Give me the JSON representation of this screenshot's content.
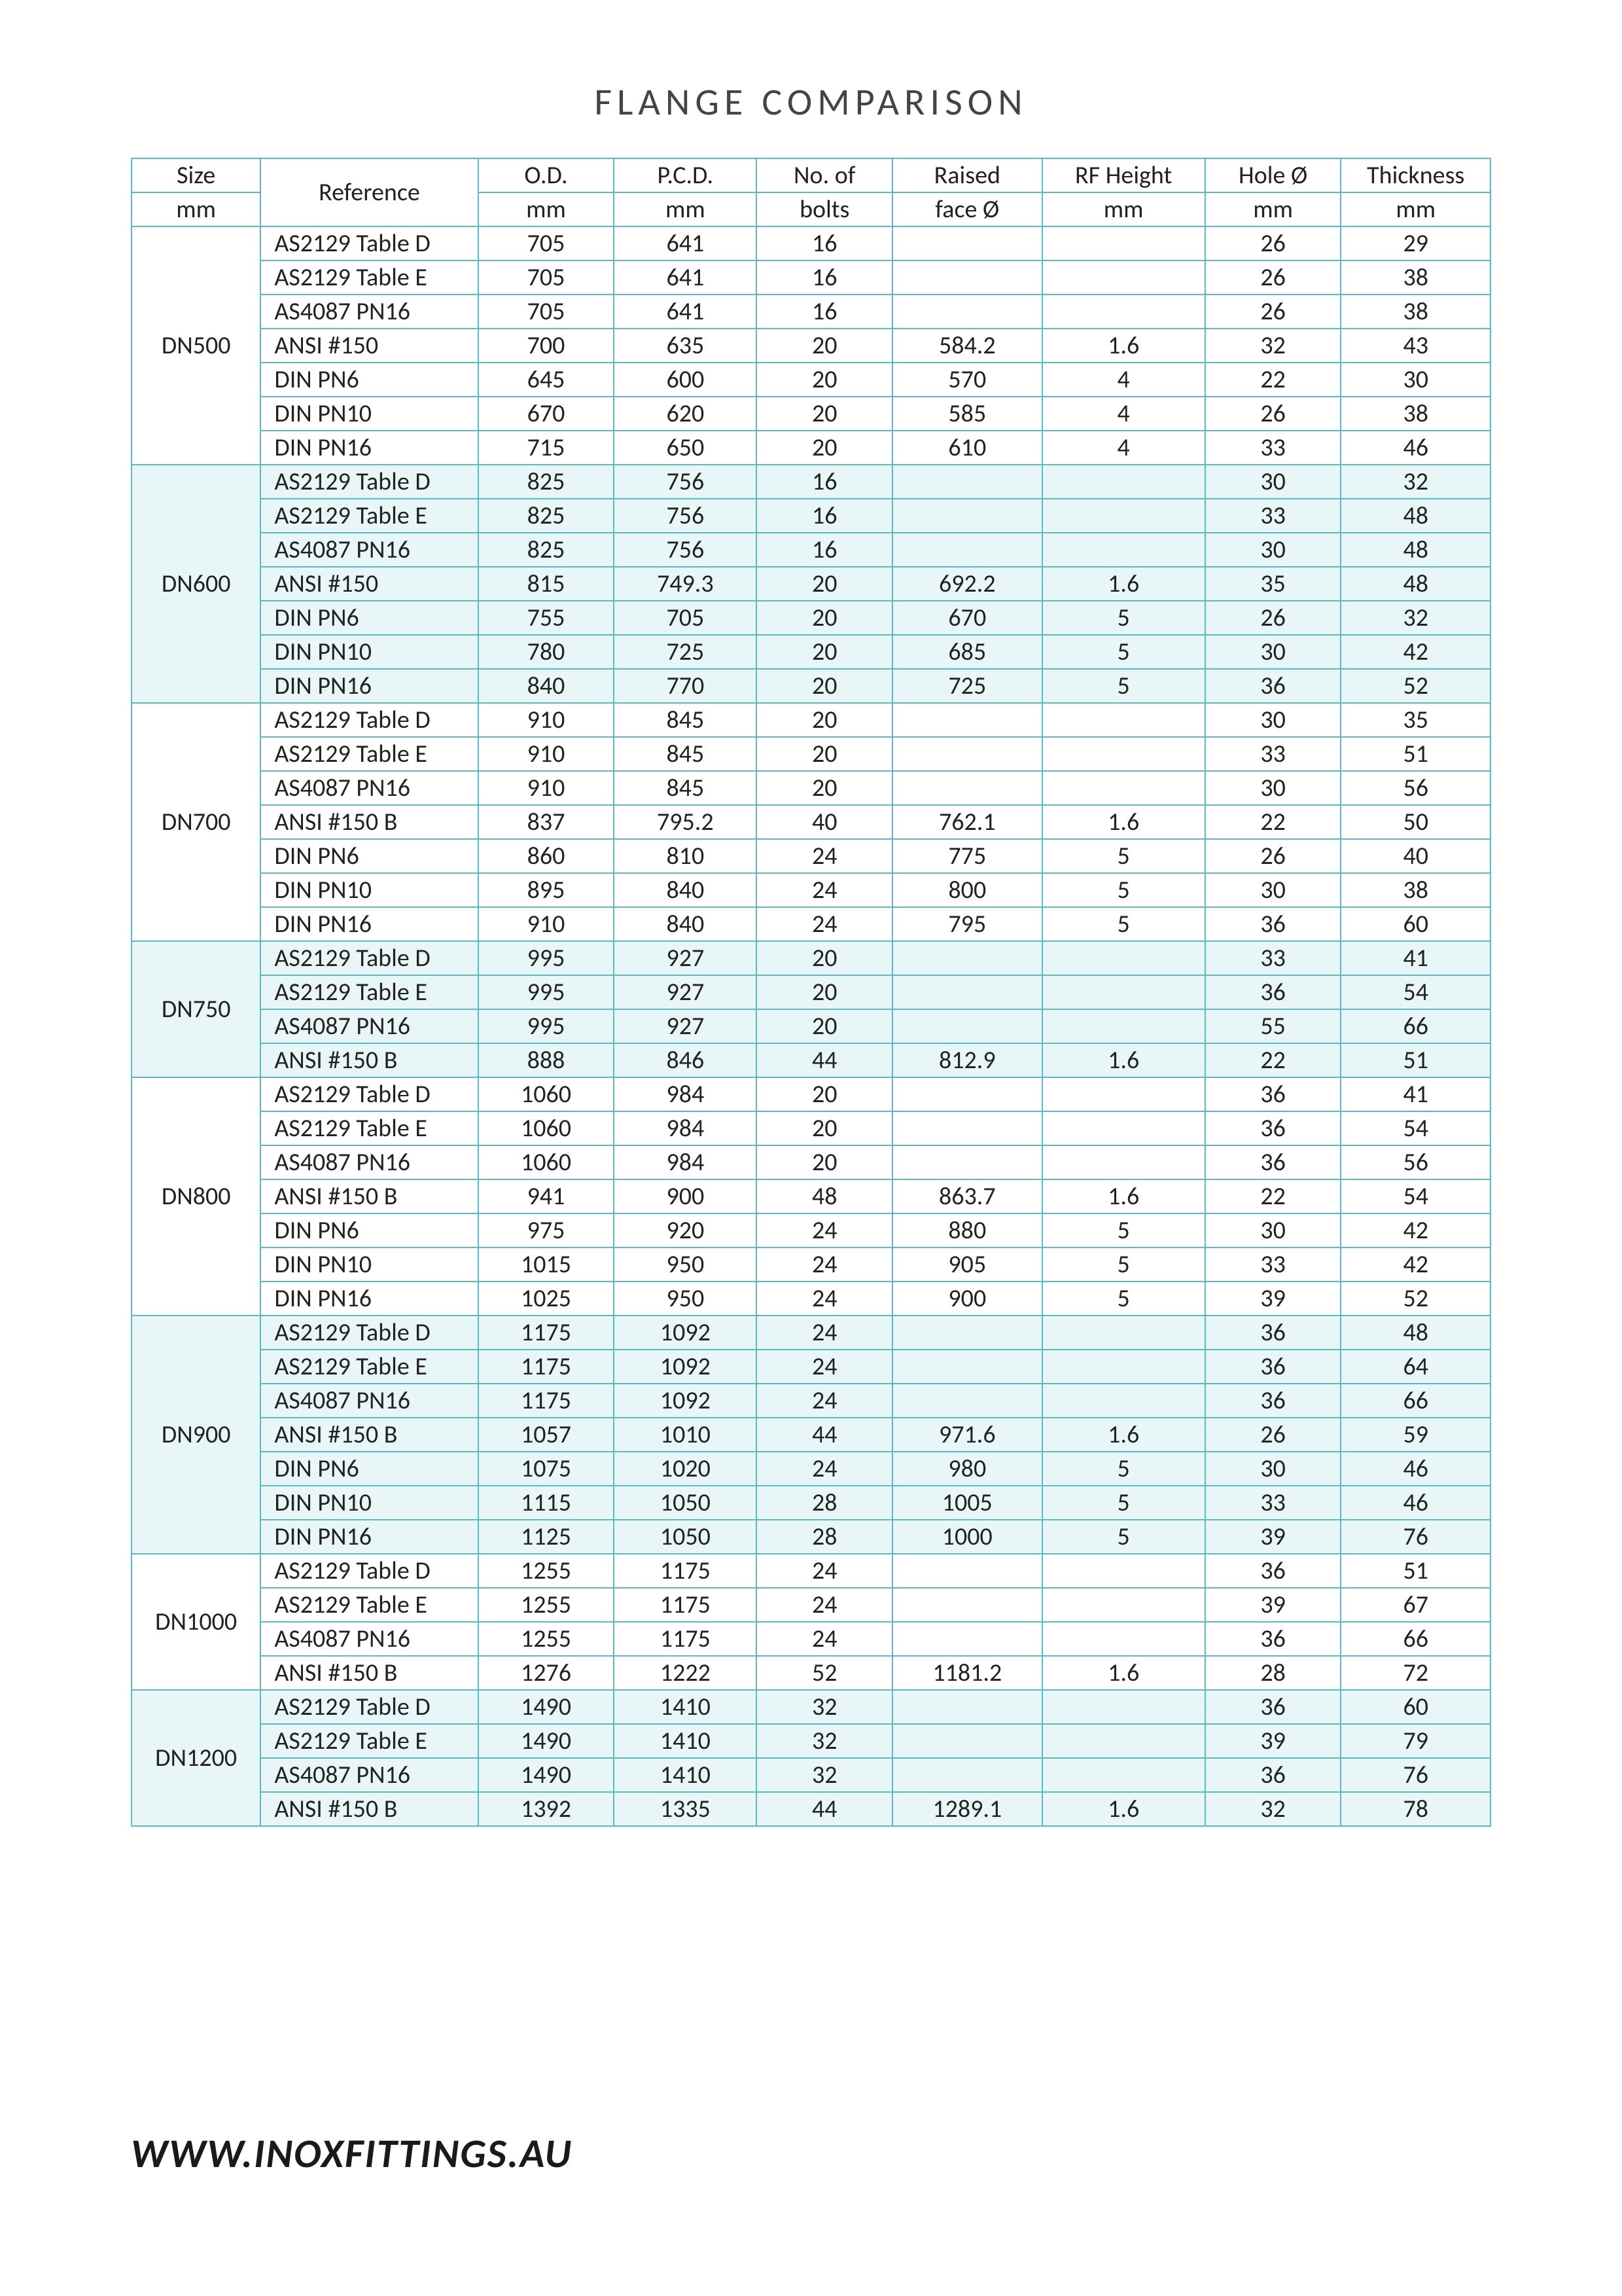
{
  "title": "FLANGE  COMPARISON",
  "footer": "WWW.INOXFITTINGS.AU",
  "colors": {
    "border": "#5bbac6",
    "shade_bg": "#e9f6f8",
    "text": "#222222",
    "page_bg": "#ffffff"
  },
  "columns": [
    {
      "key": "size",
      "h1": "Size",
      "h2": "mm",
      "class": "col-size"
    },
    {
      "key": "ref",
      "h1": "Reference",
      "h2": "",
      "class": "col-ref",
      "rowspan": 2
    },
    {
      "key": "od",
      "h1": "O.D.",
      "h2": "mm",
      "class": "col-od"
    },
    {
      "key": "pcd",
      "h1": "P.C.D.",
      "h2": "mm",
      "class": "col-pcd"
    },
    {
      "key": "bolts",
      "h1": "No. of",
      "h2": "bolts",
      "class": "col-bolts"
    },
    {
      "key": "rfd",
      "h1": "Raised",
      "h2": "face Ø",
      "class": "col-rfd"
    },
    {
      "key": "rfh",
      "h1": "RF Height",
      "h2": "mm",
      "class": "col-rfh"
    },
    {
      "key": "hole",
      "h1": "Hole Ø",
      "h2": "mm",
      "class": "col-hole"
    },
    {
      "key": "thk",
      "h1": "Thickness",
      "h2": "mm",
      "class": "col-thk"
    }
  ],
  "groups": [
    {
      "size": "DN500",
      "shade": false,
      "rows": [
        {
          "ref": "AS2129 Table D",
          "od": "705",
          "pcd": "641",
          "bolts": "16",
          "rfd": "",
          "rfh": "",
          "hole": "26",
          "thk": "29"
        },
        {
          "ref": "AS2129 Table E",
          "od": "705",
          "pcd": "641",
          "bolts": "16",
          "rfd": "",
          "rfh": "",
          "hole": "26",
          "thk": "38"
        },
        {
          "ref": "AS4087 PN16",
          "od": "705",
          "pcd": "641",
          "bolts": "16",
          "rfd": "",
          "rfh": "",
          "hole": "26",
          "thk": "38"
        },
        {
          "ref": "ANSI #150",
          "od": "700",
          "pcd": "635",
          "bolts": "20",
          "rfd": "584.2",
          "rfh": "1.6",
          "hole": "32",
          "thk": "43"
        },
        {
          "ref": "DIN PN6",
          "od": "645",
          "pcd": "600",
          "bolts": "20",
          "rfd": "570",
          "rfh": "4",
          "hole": "22",
          "thk": "30"
        },
        {
          "ref": "DIN PN10",
          "od": "670",
          "pcd": "620",
          "bolts": "20",
          "rfd": "585",
          "rfh": "4",
          "hole": "26",
          "thk": "38"
        },
        {
          "ref": "DIN PN16",
          "od": "715",
          "pcd": "650",
          "bolts": "20",
          "rfd": "610",
          "rfh": "4",
          "hole": "33",
          "thk": "46"
        }
      ]
    },
    {
      "size": "DN600",
      "shade": true,
      "rows": [
        {
          "ref": "AS2129 Table D",
          "od": "825",
          "pcd": "756",
          "bolts": "16",
          "rfd": "",
          "rfh": "",
          "hole": "30",
          "thk": "32"
        },
        {
          "ref": "AS2129 Table E",
          "od": "825",
          "pcd": "756",
          "bolts": "16",
          "rfd": "",
          "rfh": "",
          "hole": "33",
          "thk": "48"
        },
        {
          "ref": "AS4087 PN16",
          "od": "825",
          "pcd": "756",
          "bolts": "16",
          "rfd": "",
          "rfh": "",
          "hole": "30",
          "thk": "48"
        },
        {
          "ref": "ANSI #150",
          "od": "815",
          "pcd": "749.3",
          "bolts": "20",
          "rfd": "692.2",
          "rfh": "1.6",
          "hole": "35",
          "thk": "48"
        },
        {
          "ref": "DIN PN6",
          "od": "755",
          "pcd": "705",
          "bolts": "20",
          "rfd": "670",
          "rfh": "5",
          "hole": "26",
          "thk": "32"
        },
        {
          "ref": "DIN PN10",
          "od": "780",
          "pcd": "725",
          "bolts": "20",
          "rfd": "685",
          "rfh": "5",
          "hole": "30",
          "thk": "42"
        },
        {
          "ref": "DIN PN16",
          "od": "840",
          "pcd": "770",
          "bolts": "20",
          "rfd": "725",
          "rfh": "5",
          "hole": "36",
          "thk": "52"
        }
      ]
    },
    {
      "size": "DN700",
      "shade": false,
      "rows": [
        {
          "ref": "AS2129 Table D",
          "od": "910",
          "pcd": "845",
          "bolts": "20",
          "rfd": "",
          "rfh": "",
          "hole": "30",
          "thk": "35"
        },
        {
          "ref": "AS2129 Table E",
          "od": "910",
          "pcd": "845",
          "bolts": "20",
          "rfd": "",
          "rfh": "",
          "hole": "33",
          "thk": "51"
        },
        {
          "ref": "AS4087 PN16",
          "od": "910",
          "pcd": "845",
          "bolts": "20",
          "rfd": "",
          "rfh": "",
          "hole": "30",
          "thk": "56"
        },
        {
          "ref": "ANSI #150 B",
          "od": "837",
          "pcd": "795.2",
          "bolts": "40",
          "rfd": "762.1",
          "rfh": "1.6",
          "hole": "22",
          "thk": "50"
        },
        {
          "ref": "DIN PN6",
          "od": "860",
          "pcd": "810",
          "bolts": "24",
          "rfd": "775",
          "rfh": "5",
          "hole": "26",
          "thk": "40"
        },
        {
          "ref": "DIN PN10",
          "od": "895",
          "pcd": "840",
          "bolts": "24",
          "rfd": "800",
          "rfh": "5",
          "hole": "30",
          "thk": "38"
        },
        {
          "ref": "DIN PN16",
          "od": "910",
          "pcd": "840",
          "bolts": "24",
          "rfd": "795",
          "rfh": "5",
          "hole": "36",
          "thk": "60"
        }
      ]
    },
    {
      "size": "DN750",
      "shade": true,
      "rows": [
        {
          "ref": "AS2129 Table D",
          "od": "995",
          "pcd": "927",
          "bolts": "20",
          "rfd": "",
          "rfh": "",
          "hole": "33",
          "thk": "41"
        },
        {
          "ref": "AS2129 Table E",
          "od": "995",
          "pcd": "927",
          "bolts": "20",
          "rfd": "",
          "rfh": "",
          "hole": "36",
          "thk": "54"
        },
        {
          "ref": "AS4087 PN16",
          "od": "995",
          "pcd": "927",
          "bolts": "20",
          "rfd": "",
          "rfh": "",
          "hole": "55",
          "thk": "66"
        },
        {
          "ref": "ANSI #150 B",
          "od": "888",
          "pcd": "846",
          "bolts": "44",
          "rfd": "812.9",
          "rfh": "1.6",
          "hole": "22",
          "thk": "51"
        }
      ]
    },
    {
      "size": "DN800",
      "shade": false,
      "rows": [
        {
          "ref": "AS2129 Table D",
          "od": "1060",
          "pcd": "984",
          "bolts": "20",
          "rfd": "",
          "rfh": "",
          "hole": "36",
          "thk": "41"
        },
        {
          "ref": "AS2129 Table E",
          "od": "1060",
          "pcd": "984",
          "bolts": "20",
          "rfd": "",
          "rfh": "",
          "hole": "36",
          "thk": "54"
        },
        {
          "ref": "AS4087 PN16",
          "od": "1060",
          "pcd": "984",
          "bolts": "20",
          "rfd": "",
          "rfh": "",
          "hole": "36",
          "thk": "56"
        },
        {
          "ref": "ANSI #150 B",
          "od": "941",
          "pcd": "900",
          "bolts": "48",
          "rfd": "863.7",
          "rfh": "1.6",
          "hole": "22",
          "thk": "54"
        },
        {
          "ref": "DIN PN6",
          "od": "975",
          "pcd": "920",
          "bolts": "24",
          "rfd": "880",
          "rfh": "5",
          "hole": "30",
          "thk": "42"
        },
        {
          "ref": "DIN PN10",
          "od": "1015",
          "pcd": "950",
          "bolts": "24",
          "rfd": "905",
          "rfh": "5",
          "hole": "33",
          "thk": "42"
        },
        {
          "ref": "DIN PN16",
          "od": "1025",
          "pcd": "950",
          "bolts": "24",
          "rfd": "900",
          "rfh": "5",
          "hole": "39",
          "thk": "52"
        }
      ]
    },
    {
      "size": "DN900",
      "shade": true,
      "rows": [
        {
          "ref": "AS2129 Table D",
          "od": "1175",
          "pcd": "1092",
          "bolts": "24",
          "rfd": "",
          "rfh": "",
          "hole": "36",
          "thk": "48"
        },
        {
          "ref": "AS2129 Table E",
          "od": "1175",
          "pcd": "1092",
          "bolts": "24",
          "rfd": "",
          "rfh": "",
          "hole": "36",
          "thk": "64"
        },
        {
          "ref": "AS4087 PN16",
          "od": "1175",
          "pcd": "1092",
          "bolts": "24",
          "rfd": "",
          "rfh": "",
          "hole": "36",
          "thk": "66"
        },
        {
          "ref": "ANSI #150 B",
          "od": "1057",
          "pcd": "1010",
          "bolts": "44",
          "rfd": "971.6",
          "rfh": "1.6",
          "hole": "26",
          "thk": "59"
        },
        {
          "ref": "DIN PN6",
          "od": "1075",
          "pcd": "1020",
          "bolts": "24",
          "rfd": "980",
          "rfh": "5",
          "hole": "30",
          "thk": "46"
        },
        {
          "ref": "DIN PN10",
          "od": "1115",
          "pcd": "1050",
          "bolts": "28",
          "rfd": "1005",
          "rfh": "5",
          "hole": "33",
          "thk": "46"
        },
        {
          "ref": "DIN PN16",
          "od": "1125",
          "pcd": "1050",
          "bolts": "28",
          "rfd": "1000",
          "rfh": "5",
          "hole": "39",
          "thk": "76"
        }
      ]
    },
    {
      "size": "DN1000",
      "shade": false,
      "rows": [
        {
          "ref": "AS2129 Table D",
          "od": "1255",
          "pcd": "1175",
          "bolts": "24",
          "rfd": "",
          "rfh": "",
          "hole": "36",
          "thk": "51"
        },
        {
          "ref": "AS2129 Table E",
          "od": "1255",
          "pcd": "1175",
          "bolts": "24",
          "rfd": "",
          "rfh": "",
          "hole": "39",
          "thk": "67"
        },
        {
          "ref": "AS4087 PN16",
          "od": "1255",
          "pcd": "1175",
          "bolts": "24",
          "rfd": "",
          "rfh": "",
          "hole": "36",
          "thk": "66"
        },
        {
          "ref": "ANSI #150 B",
          "od": "1276",
          "pcd": "1222",
          "bolts": "52",
          "rfd": "1181.2",
          "rfh": "1.6",
          "hole": "28",
          "thk": "72"
        }
      ]
    },
    {
      "size": "DN1200",
      "shade": true,
      "rows": [
        {
          "ref": "AS2129 Table D",
          "od": "1490",
          "pcd": "1410",
          "bolts": "32",
          "rfd": "",
          "rfh": "",
          "hole": "36",
          "thk": "60"
        },
        {
          "ref": "AS2129 Table E",
          "od": "1490",
          "pcd": "1410",
          "bolts": "32",
          "rfd": "",
          "rfh": "",
          "hole": "39",
          "thk": "79"
        },
        {
          "ref": "AS4087 PN16",
          "od": "1490",
          "pcd": "1410",
          "bolts": "32",
          "rfd": "",
          "rfh": "",
          "hole": "36",
          "thk": "76"
        },
        {
          "ref": "ANSI #150 B",
          "od": "1392",
          "pcd": "1335",
          "bolts": "44",
          "rfd": "1289.1",
          "rfh": "1.6",
          "hole": "32",
          "thk": "78"
        }
      ]
    }
  ]
}
